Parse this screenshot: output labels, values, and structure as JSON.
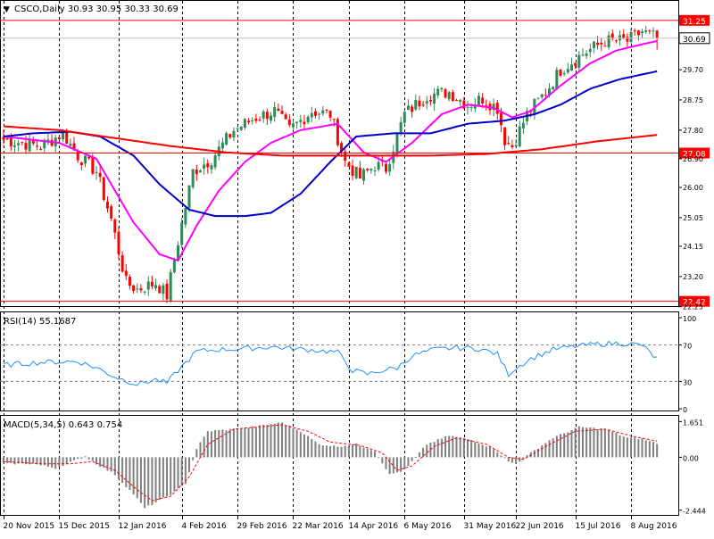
{
  "header": {
    "arrow_glyph": "▼",
    "symbol_line": "CSCO,Daily  30.93 30.95 30.33 30.69"
  },
  "price_levels": {
    "resistance": "31.25",
    "current": "30.69",
    "middle": "27.08",
    "support": "22.42"
  },
  "colors": {
    "level_line": "#ff0000",
    "bull": "#2e8b57",
    "bear": "#ff0000",
    "ma_fast": "#ff00ff",
    "ma_mid": "#0000c8",
    "ma_slow": "#ff0000",
    "rsi": "#1e90ff",
    "macd_hist": "#808080",
    "macd_signal": "#ff0000",
    "current_label_bg": "#ffffff",
    "level_label_bg": "#ff0000"
  },
  "chart_data": [
    {
      "type": "candlestick",
      "panel": "price",
      "symbol": "CSCO",
      "timeframe": "Daily",
      "ohlc_last": {
        "open": 30.93,
        "high": 30.95,
        "low": 30.33,
        "close": 30.69
      },
      "ylim": [
        22.27,
        31.75
      ],
      "y_ticks": [
        "31.25",
        "30.69",
        "29.70",
        "28.75",
        "27.80",
        "27.08",
        "26.90",
        "26.00",
        "25.05",
        "24.15",
        "23.20",
        "22.42",
        "22.25"
      ],
      "horizontal_levels": [
        31.25,
        27.08,
        22.42
      ],
      "x_tick_labels": [
        "20 Nov 2015",
        "15 Dec 2015",
        "12 Jan 2016",
        "4 Feb 2016",
        "29 Feb 2016",
        "22 Mar 2016",
        "14 Apr 2016",
        "6 May 2016",
        "31 May 2016",
        "22 Jun 2016",
        "15 Jul 2016",
        "8 Aug 2016"
      ],
      "close_anchors": [
        [
          0,
          27.5
        ],
        [
          10,
          27.3
        ],
        [
          16,
          27.7
        ],
        [
          20,
          27.0
        ],
        [
          25,
          26.5
        ],
        [
          29,
          25.0
        ],
        [
          33,
          23.0
        ],
        [
          36,
          22.8
        ],
        [
          41,
          23.0
        ],
        [
          44,
          22.6
        ],
        [
          47,
          24.3
        ],
        [
          51,
          26.5
        ],
        [
          56,
          26.9
        ],
        [
          62,
          27.8
        ],
        [
          68,
          28.2
        ],
        [
          73,
          28.4
        ],
        [
          77,
          27.8
        ],
        [
          83,
          28.4
        ],
        [
          88,
          28.3
        ],
        [
          92,
          26.8
        ],
        [
          96,
          26.3
        ],
        [
          100,
          26.7
        ],
        [
          103,
          26.6
        ],
        [
          108,
          28.3
        ],
        [
          114,
          28.9
        ],
        [
          120,
          29.0
        ],
        [
          125,
          28.6
        ],
        [
          129,
          28.8
        ],
        [
          133,
          28.5
        ],
        [
          135,
          27.5
        ],
        [
          137,
          27.3
        ],
        [
          141,
          28.3
        ],
        [
          146,
          29.0
        ],
        [
          150,
          29.7
        ],
        [
          156,
          30.2
        ],
        [
          162,
          30.6
        ],
        [
          168,
          30.6
        ],
        [
          172,
          30.9
        ],
        [
          176,
          30.69
        ]
      ],
      "moving_averages": [
        {
          "color": "#ff00ff",
          "points": [
            [
              0,
              27.6
            ],
            [
              15,
              27.4
            ],
            [
              25,
              26.9
            ],
            [
              35,
              24.9
            ],
            [
              42,
              23.9
            ],
            [
              47,
              23.7
            ],
            [
              52,
              24.8
            ],
            [
              58,
              25.9
            ],
            [
              65,
              26.8
            ],
            [
              72,
              27.4
            ],
            [
              80,
              27.8
            ],
            [
              90,
              28.0
            ],
            [
              97,
              27.1
            ],
            [
              103,
              26.8
            ],
            [
              110,
              27.4
            ],
            [
              118,
              28.3
            ],
            [
              125,
              28.6
            ],
            [
              132,
              28.5
            ],
            [
              137,
              28.2
            ],
            [
              142,
              28.4
            ],
            [
              150,
              29.2
            ],
            [
              158,
              29.9
            ],
            [
              165,
              30.3
            ],
            [
              172,
              30.5
            ],
            [
              176,
              30.6
            ]
          ]
        },
        {
          "color": "#0000c8",
          "points": [
            [
              0,
              27.6
            ],
            [
              8,
              27.7
            ],
            [
              18,
              27.75
            ],
            [
              26,
              27.6
            ],
            [
              35,
              27.0
            ],
            [
              42,
              26.1
            ],
            [
              50,
              25.3
            ],
            [
              57,
              25.1
            ],
            [
              65,
              25.1
            ],
            [
              72,
              25.2
            ],
            [
              80,
              25.8
            ],
            [
              88,
              26.8
            ],
            [
              95,
              27.6
            ],
            [
              105,
              27.7
            ],
            [
              115,
              27.7
            ],
            [
              125,
              28.0
            ],
            [
              135,
              28.1
            ],
            [
              143,
              28.3
            ],
            [
              150,
              28.6
            ],
            [
              158,
              29.1
            ],
            [
              166,
              29.4
            ],
            [
              172,
              29.55
            ],
            [
              176,
              29.65
            ]
          ]
        },
        {
          "color": "#ff0000",
          "points": [
            [
              0,
              27.92
            ],
            [
              15,
              27.8
            ],
            [
              30,
              27.55
            ],
            [
              45,
              27.3
            ],
            [
              60,
              27.1
            ],
            [
              75,
              27.0
            ],
            [
              95,
              27.0
            ],
            [
              115,
              27.0
            ],
            [
              130,
              27.05
            ],
            [
              145,
              27.2
            ],
            [
              160,
              27.45
            ],
            [
              176,
              27.65
            ]
          ]
        }
      ]
    },
    {
      "type": "line",
      "panel": "rsi",
      "title": "RSI(14) 55.1687",
      "ylim": [
        0,
        100
      ],
      "y_ticks": [
        "100",
        "70",
        "30",
        "0"
      ],
      "levels": [
        70,
        30
      ],
      "anchors": [
        [
          0,
          48
        ],
        [
          10,
          51
        ],
        [
          20,
          52
        ],
        [
          25,
          45
        ],
        [
          30,
          35
        ],
        [
          36,
          27
        ],
        [
          41,
          32
        ],
        [
          44,
          28
        ],
        [
          47,
          42
        ],
        [
          52,
          63
        ],
        [
          58,
          65
        ],
        [
          65,
          66
        ],
        [
          72,
          68
        ],
        [
          78,
          66
        ],
        [
          85,
          64
        ],
        [
          90,
          62
        ],
        [
          94,
          42
        ],
        [
          98,
          38
        ],
        [
          102,
          42
        ],
        [
          106,
          45
        ],
        [
          110,
          58
        ],
        [
          116,
          65
        ],
        [
          122,
          67
        ],
        [
          128,
          66
        ],
        [
          133,
          60
        ],
        [
          136,
          38
        ],
        [
          138,
          45
        ],
        [
          142,
          55
        ],
        [
          148,
          65
        ],
        [
          155,
          69
        ],
        [
          160,
          71
        ],
        [
          166,
          72
        ],
        [
          172,
          70
        ],
        [
          175,
          58
        ],
        [
          176,
          55
        ]
      ]
    },
    {
      "type": "bar",
      "panel": "macd",
      "title": "MACD(5,34,5) 0.643 0.754",
      "ylim": [
        -2.62,
        1.83
      ],
      "y_ticks": [
        "1.651",
        "0.00",
        "-2.444"
      ],
      "hist_anchors": [
        [
          0,
          -0.3
        ],
        [
          8,
          -0.3
        ],
        [
          14,
          -0.5
        ],
        [
          20,
          -0.1
        ],
        [
          22,
          0.05
        ],
        [
          25,
          -0.3
        ],
        [
          30,
          -0.8
        ],
        [
          35,
          -1.7
        ],
        [
          38,
          -2.35
        ],
        [
          42,
          -2.0
        ],
        [
          46,
          -1.6
        ],
        [
          49,
          -1.2
        ],
        [
          52,
          0.4
        ],
        [
          55,
          1.2
        ],
        [
          65,
          1.35
        ],
        [
          75,
          1.6
        ],
        [
          80,
          1.2
        ],
        [
          85,
          0.6
        ],
        [
          90,
          0.5
        ],
        [
          95,
          0.6
        ],
        [
          100,
          0.3
        ],
        [
          104,
          -0.8
        ],
        [
          108,
          -0.6
        ],
        [
          110,
          -0.2
        ],
        [
          114,
          0.6
        ],
        [
          120,
          1.0
        ],
        [
          126,
          0.8
        ],
        [
          132,
          0.4
        ],
        [
          136,
          -0.2
        ],
        [
          138,
          -0.3
        ],
        [
          142,
          0.2
        ],
        [
          148,
          0.9
        ],
        [
          155,
          1.4
        ],
        [
          162,
          1.3
        ],
        [
          168,
          0.9
        ],
        [
          172,
          0.85
        ],
        [
          176,
          0.64
        ]
      ],
      "signal_anchors": [
        [
          0,
          -0.2
        ],
        [
          10,
          -0.3
        ],
        [
          18,
          -0.3
        ],
        [
          24,
          -0.2
        ],
        [
          30,
          -0.6
        ],
        [
          36,
          -1.5
        ],
        [
          40,
          -2.0
        ],
        [
          45,
          -1.8
        ],
        [
          50,
          -0.9
        ],
        [
          55,
          0.6
        ],
        [
          62,
          1.3
        ],
        [
          75,
          1.5
        ],
        [
          82,
          1.2
        ],
        [
          88,
          0.7
        ],
        [
          96,
          0.55
        ],
        [
          102,
          0.2
        ],
        [
          106,
          -0.6
        ],
        [
          110,
          -0.4
        ],
        [
          116,
          0.5
        ],
        [
          122,
          0.9
        ],
        [
          130,
          0.6
        ],
        [
          136,
          0.0
        ],
        [
          140,
          -0.1
        ],
        [
          146,
          0.5
        ],
        [
          154,
          1.2
        ],
        [
          162,
          1.3
        ],
        [
          170,
          0.95
        ],
        [
          176,
          0.75
        ]
      ]
    }
  ]
}
